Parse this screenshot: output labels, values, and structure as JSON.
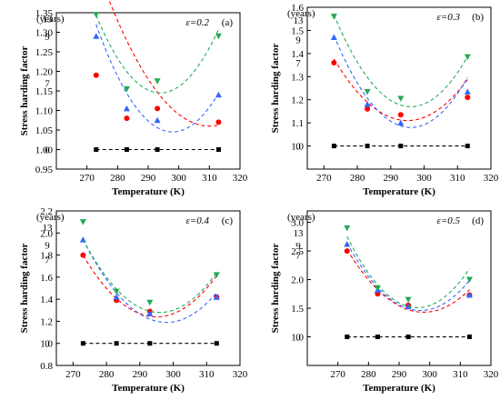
{
  "chart_data": [
    {
      "type": "scatter",
      "panel_label": "(a)",
      "epsilon_label": "ε=0.2",
      "years_label": "(years)",
      "xlabel": "Temperature (K)",
      "ylabel": "Stress harding factor",
      "xlim": [
        260,
        320
      ],
      "ylim": [
        0.95,
        1.35
      ],
      "xticks": [
        270,
        280,
        290,
        300,
        310,
        320
      ],
      "yticks": [
        0.95,
        1.0,
        1.05,
        1.1,
        1.15,
        1.2,
        1.25,
        1.3,
        1.35
      ],
      "ytick_decimals": 2,
      "grid": false,
      "x": [
        273,
        283,
        293,
        313
      ],
      "series": [
        {
          "name": "0",
          "label_y": 1.0,
          "marker": "square",
          "color": "#000000",
          "values": [
            1.0,
            1.0,
            1.0,
            1.0
          ],
          "fit": [
            1.0,
            0,
            0
          ]
        },
        {
          "name": "7",
          "label_y": 1.17,
          "marker": "circle",
          "color": "#ff0000",
          "values": [
            1.19,
            1.08,
            1.105,
            1.07
          ],
          "fit": [
            1.06,
            310,
            0.0003
          ]
        },
        {
          "name": "9",
          "label_y": 1.29,
          "marker": "triangle-up",
          "color": "#3366ff",
          "values": [
            1.29,
            1.105,
            1.075,
            1.14
          ],
          "fit": [
            1.045,
            298,
            0.00044
          ]
        },
        {
          "name": "13",
          "label_y": 1.335,
          "marker": "triangle-down",
          "color": "#22aa55",
          "values": [
            1.345,
            1.155,
            1.175,
            1.29
          ],
          "fit": [
            1.145,
            294,
            0.00045
          ]
        }
      ]
    },
    {
      "type": "scatter",
      "panel_label": "(b)",
      "epsilon_label": "ε=0.3",
      "years_label": "(years)",
      "xlabel": "Temperature (K)",
      "ylabel": "Stress harding factor",
      "xlim": [
        265,
        320
      ],
      "ylim": [
        0.9,
        1.6
      ],
      "xticks": [
        270,
        280,
        290,
        300,
        310,
        320
      ],
      "yticks": [
        1.0,
        1.1,
        1.2,
        1.3,
        1.4,
        1.5,
        1.6
      ],
      "ytick_decimals": 1,
      "grid": false,
      "x": [
        273,
        283,
        293,
        313
      ],
      "series": [
        {
          "name": "0",
          "label_y": 1.0,
          "marker": "square",
          "color": "#000000",
          "values": [
            1.0,
            1.0,
            1.0,
            1.0
          ],
          "fit": [
            1.0,
            0,
            0
          ]
        },
        {
          "name": "7",
          "label_y": 1.36,
          "marker": "circle",
          "color": "#ff0000",
          "values": [
            1.36,
            1.16,
            1.135,
            1.21
          ],
          "fit": [
            1.11,
            295,
            0.00055
          ]
        },
        {
          "name": "9",
          "label_y": 1.46,
          "marker": "triangle-up",
          "color": "#3366ff",
          "values": [
            1.47,
            1.18,
            1.1,
            1.235
          ],
          "fit": [
            1.08,
            296,
            0.00075
          ]
        },
        {
          "name": "13",
          "label_y": 1.545,
          "marker": "triangle-down",
          "color": "#22aa55",
          "values": [
            1.56,
            1.235,
            1.205,
            1.385
          ],
          "fit": [
            1.17,
            296,
            0.00075
          ]
        }
      ]
    },
    {
      "type": "scatter",
      "panel_label": "(c)",
      "epsilon_label": "ε=0.4",
      "years_label": "(years)",
      "xlabel": "Temperature (K)",
      "ylabel": "Stress harding factor",
      "xlim": [
        265,
        320
      ],
      "ylim": [
        0.8,
        2.2
      ],
      "xticks": [
        270,
        280,
        290,
        300,
        310,
        320
      ],
      "yticks": [
        0.8,
        1.0,
        1.2,
        1.4,
        1.6,
        1.8,
        2.0,
        2.2
      ],
      "ytick_decimals": 1,
      "grid": false,
      "x": [
        273,
        283,
        293,
        313
      ],
      "series": [
        {
          "name": "0",
          "label_y": 1.0,
          "marker": "square",
          "color": "#000000",
          "values": [
            1.0,
            1.0,
            1.0,
            1.0
          ],
          "fit": [
            1.0,
            0,
            0
          ]
        },
        {
          "name": "7",
          "label_y": 1.76,
          "marker": "circle",
          "color": "#ff0000",
          "values": [
            1.8,
            1.39,
            1.29,
            1.42
          ],
          "fit": [
            1.24,
            295,
            0.00115
          ]
        },
        {
          "name": "9",
          "label_y": 1.89,
          "marker": "triangle-up",
          "color": "#3366ff",
          "values": [
            1.94,
            1.42,
            1.27,
            1.42
          ],
          "fit": [
            1.19,
            298,
            0.0012
          ]
        },
        {
          "name": "13",
          "label_y": 2.05,
          "marker": "triangle-down",
          "color": "#22aa55",
          "values": [
            2.1,
            1.47,
            1.37,
            1.62
          ],
          "fit": [
            1.28,
            296,
            0.00125
          ]
        }
      ]
    },
    {
      "type": "scatter",
      "panel_label": "(d)",
      "epsilon_label": "ε=0.5",
      "years_label": "(years)",
      "xlabel": "Temperature (K)",
      "ylabel": "Stress harding factor",
      "xlim": [
        260,
        320
      ],
      "ylim": [
        0.5,
        3.2
      ],
      "xticks": [
        270,
        280,
        290,
        300,
        310,
        320
      ],
      "yticks": [
        1.0,
        1.5,
        2.0,
        2.5,
        3.0
      ],
      "ytick_decimals": 1,
      "grid": false,
      "x": [
        273,
        283,
        293,
        313
      ],
      "series": [
        {
          "name": "0",
          "label_y": 1.0,
          "marker": "square",
          "color": "#000000",
          "values": [
            1.0,
            1.0,
            1.0,
            1.0
          ],
          "fit": [
            1.0,
            0,
            0
          ]
        },
        {
          "name": "7",
          "label_y": 2.43,
          "marker": "circle",
          "color": "#ff0000",
          "values": [
            2.5,
            1.75,
            1.55,
            1.73
          ],
          "fit": [
            1.43,
            298,
            0.00175
          ]
        },
        {
          "name": "9",
          "label_y": 2.6,
          "marker": "triangle-up",
          "color": "#3366ff",
          "values": [
            2.62,
            1.82,
            1.53,
            1.73
          ],
          "fit": [
            1.46,
            297,
            0.00205
          ]
        },
        {
          "name": "13",
          "label_y": 2.82,
          "marker": "triangle-down",
          "color": "#22aa55",
          "values": [
            2.9,
            1.85,
            1.65,
            2.0
          ],
          "fit": [
            1.51,
            296,
            0.00235
          ]
        }
      ]
    }
  ]
}
